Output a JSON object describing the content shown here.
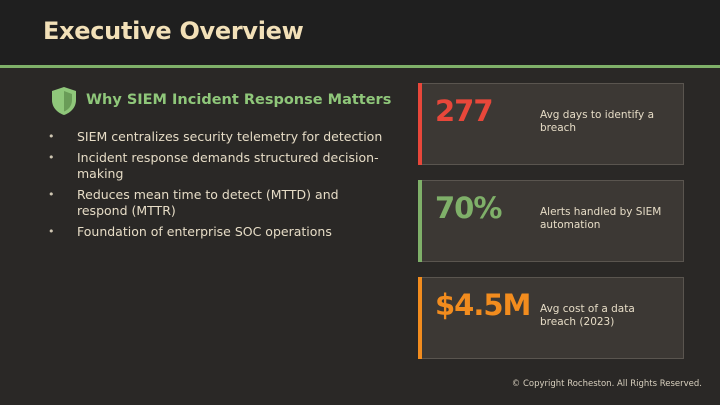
{
  "header": {
    "title": "Executive Overview"
  },
  "section": {
    "title": "Why SIEM Incident Response Matters",
    "icon": "shield-icon",
    "bullets": [
      "SIEM centralizes security telemetry for detection",
      "Incident response demands structured decision-making",
      "Reduces mean time to detect (MTTD) and respond (MTTR)",
      "Foundation of enterprise SOC operations"
    ]
  },
  "stats": [
    {
      "value": "277",
      "label": "Avg days to identify a breach",
      "color": "#e8473a"
    },
    {
      "value": "70%",
      "label": "Alerts handled by SIEM automation",
      "color": "#7fb069"
    },
    {
      "value": "$4.5M",
      "label": "Avg cost of a data breach (2023)",
      "color": "#f28c1e"
    }
  ],
  "colors": {
    "accent": "#7fb069",
    "header_bg": "#1f1f1f",
    "background": "#2a2826"
  },
  "footer": {
    "copyright": "© Copyright Rocheston. All Rights Reserved."
  }
}
